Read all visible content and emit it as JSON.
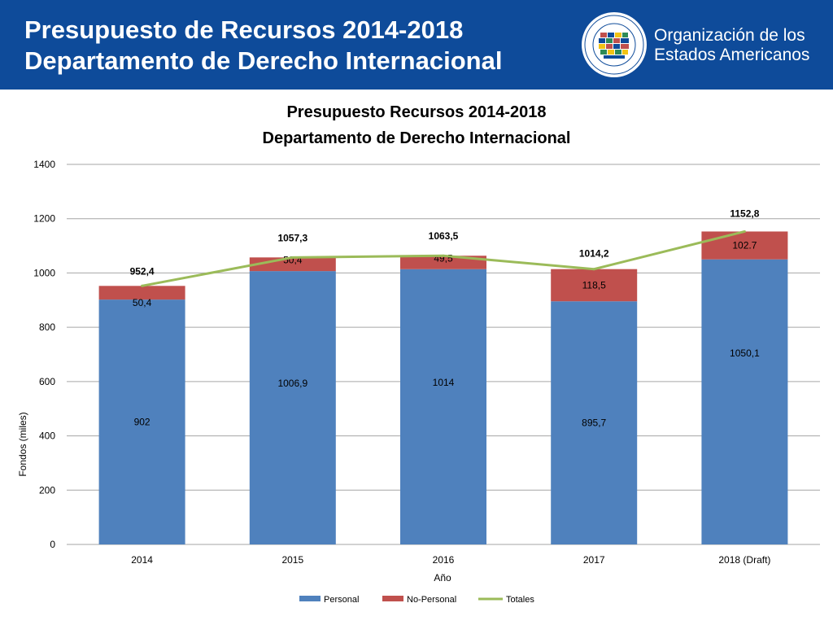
{
  "header": {
    "title_line1": "Presupuesto de Recursos 2014-2018",
    "title_line2": "Departamento de Derecho Internacional",
    "org_line1": "Organización de los",
    "org_line2": "Estados Americanos",
    "logo_icon": "oas-seal-icon",
    "background_color": "#0e4b9a"
  },
  "chart_data": {
    "type": "bar",
    "stacked": true,
    "title": "Presupuesto Recursos 2014-2018",
    "subtitle": "Departamento de Derecho Internacional",
    "xlabel": "Año",
    "ylabel": "Fondos (miles)",
    "ylim": [
      0,
      1400
    ],
    "yticks": [
      0,
      200,
      400,
      600,
      800,
      1000,
      1200,
      1400
    ],
    "grid": true,
    "legend_position": "bottom",
    "categories": [
      "2014",
      "2015",
      "2016",
      "2017",
      "2018 (Draft)"
    ],
    "series": [
      {
        "name": "Personal",
        "type": "bar",
        "color": "#4f81bd",
        "values": [
          902,
          1006.9,
          1014,
          895.7,
          1050.1
        ],
        "labels": [
          "902",
          "1006,9",
          "1014",
          "895,7",
          "1050,1"
        ]
      },
      {
        "name": "No-Personal",
        "type": "bar",
        "color": "#c0504d",
        "values": [
          50.4,
          50.4,
          49.5,
          118.5,
          102.7
        ],
        "labels": [
          "50,4",
          "50,4",
          "49,5",
          "118,5",
          "102.7"
        ]
      },
      {
        "name": "Totales",
        "type": "line",
        "color": "#9bbb59",
        "values": [
          952.4,
          1057.3,
          1063.5,
          1014.2,
          1152.8
        ],
        "labels": [
          "952,4",
          "1057,3",
          "1063,5",
          "1014,2",
          "1152,8"
        ]
      }
    ]
  }
}
